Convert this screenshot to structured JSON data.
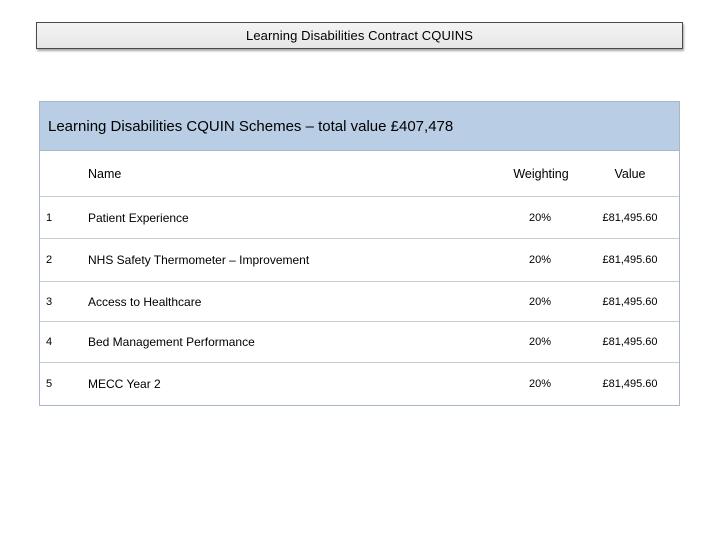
{
  "page_title": "Learning Disabilities Contract CQUINS",
  "table": {
    "heading": "Learning Disabilities CQUIN Schemes – total value £407,478",
    "columns": {
      "number": "",
      "name": "Name",
      "weighting": "Weighting",
      "value": "Value"
    },
    "rows": [
      {
        "number": "1",
        "name": "Patient Experience",
        "weighting": "20%",
        "value": "£81,495.60"
      },
      {
        "number": "2",
        "name": "NHS Safety Thermometer – Improvement",
        "weighting": "20%",
        "value": "£81,495.60"
      },
      {
        "number": "3",
        "name": "Access to Healthcare",
        "weighting": "20%",
        "value": "£81,495.60"
      },
      {
        "number": "4",
        "name": "Bed Management Performance",
        "weighting": "20%",
        "value": "£81,495.60"
      },
      {
        "number": "5",
        "name": "MECC Year 2",
        "weighting": "20%",
        "value": "£81,495.60"
      }
    ]
  },
  "colors": {
    "header_fill": "#b9cde5",
    "border": "#a7b7c8"
  }
}
